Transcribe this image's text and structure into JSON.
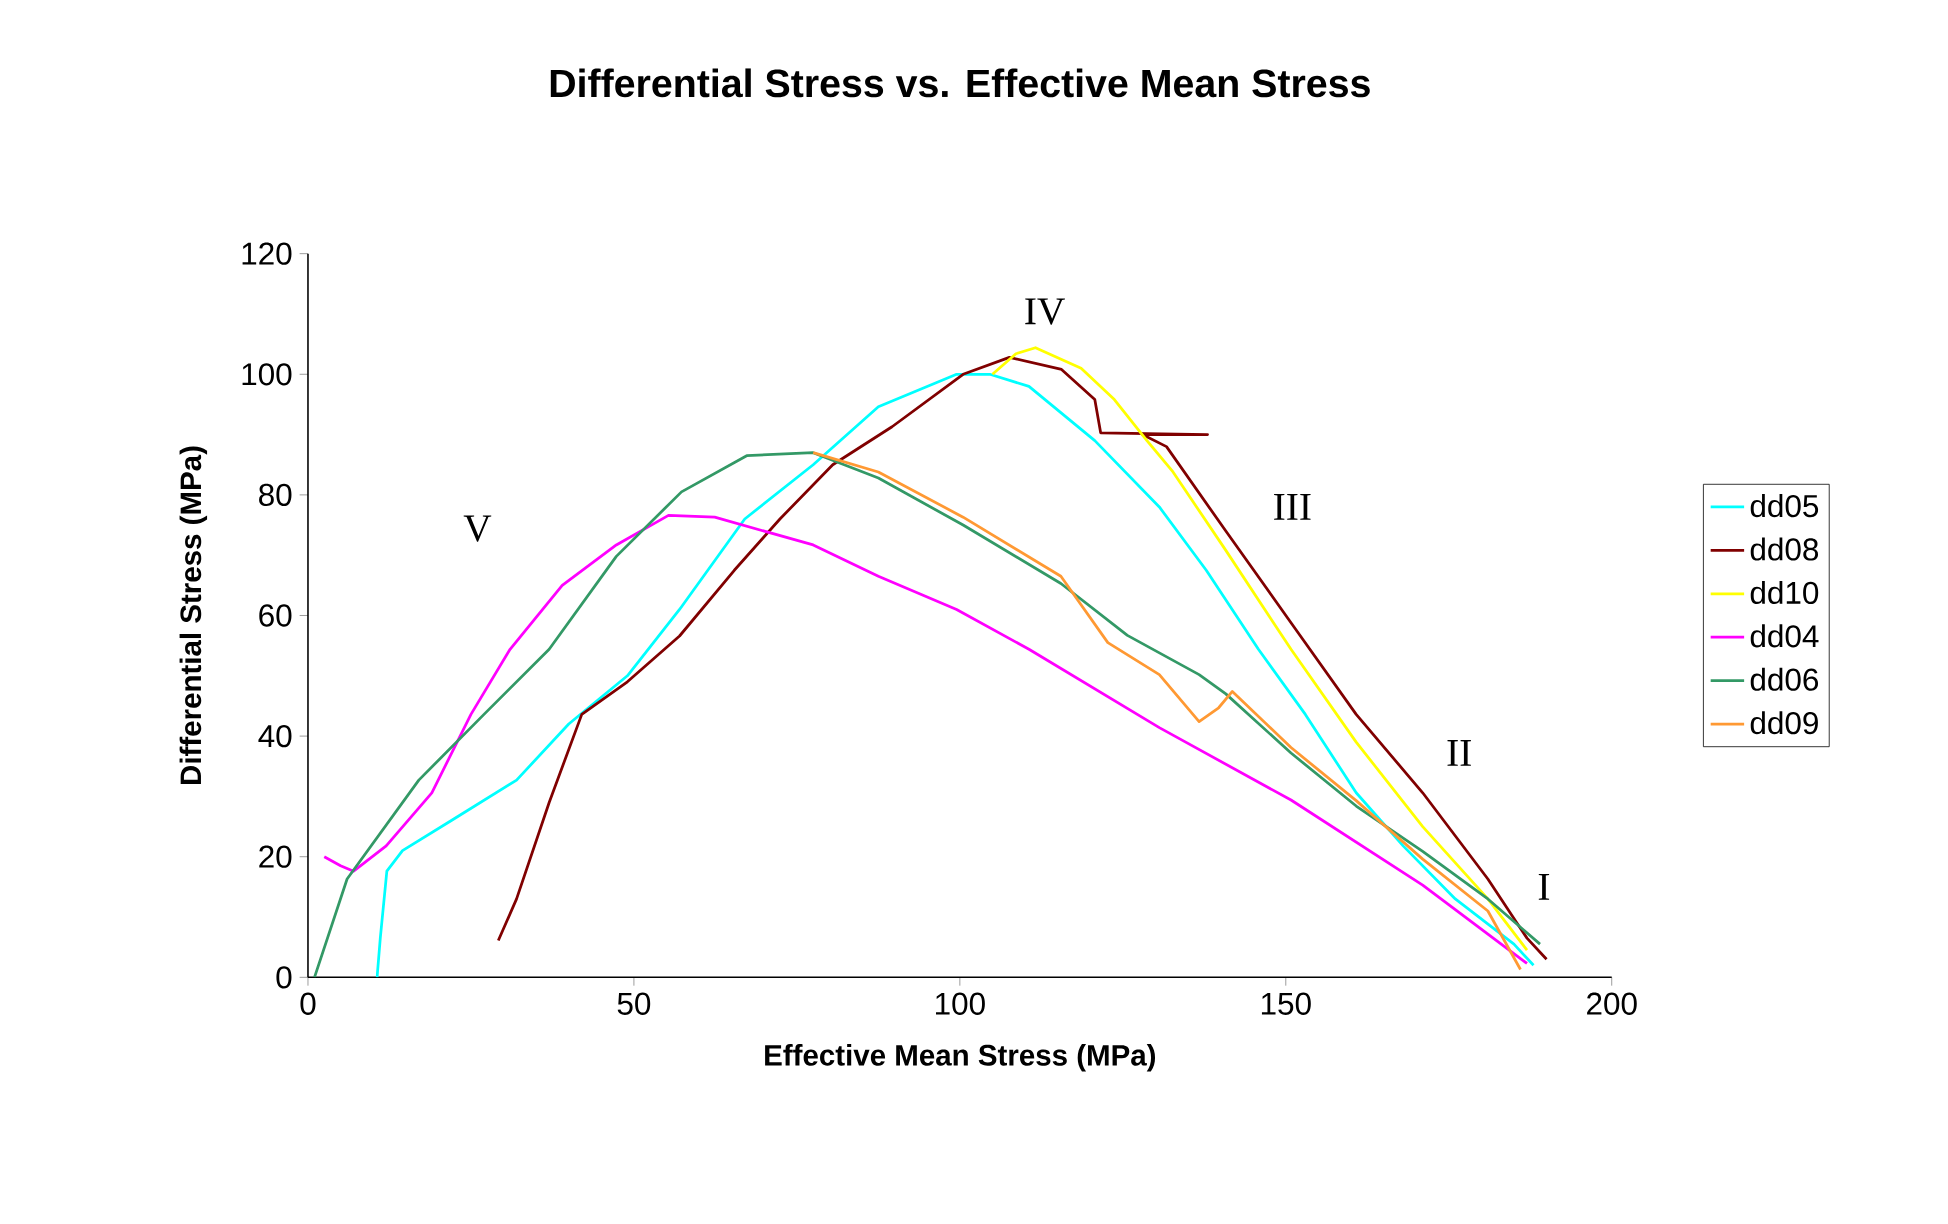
{
  "chart_data": {
    "type": "line",
    "title": "Differential Stress vs. Effective Mean Stress",
    "xlabel": "Effective Mean Stress (MPa)",
    "ylabel": "Differential Stress (MPa)",
    "xlim": [
      0,
      200
    ],
    "xticks": [
      0,
      50,
      100,
      150,
      200
    ],
    "ylim": [
      0,
      120
    ],
    "yticks": [
      0,
      20,
      40,
      60,
      80,
      100,
      120
    ],
    "grid": false,
    "legend": "right",
    "marker": "none",
    "line_style": "solid",
    "series": [
      {
        "name": "dd05",
        "color": "#00ffff",
        "x": [
          10.6,
          11.1,
          12.1,
          14.5,
          22,
          32,
          40,
          49,
          57,
          67,
          77.5,
          87.5,
          99.5,
          104.6,
          110.6,
          120.7,
          130.6,
          137.8,
          145.8,
          153,
          160.8,
          168,
          176,
          185,
          188
        ],
        "values": [
          0,
          6.6,
          17.6,
          21,
          26,
          32.7,
          42,
          50,
          61,
          76,
          85,
          94.6,
          100,
          100,
          98,
          89,
          78,
          67.5,
          54.4,
          43.6,
          30.6,
          21.8,
          13,
          5.5,
          2
        ]
      },
      {
        "name": "dd08",
        "color": "#800000",
        "x": [
          29.2,
          32,
          37,
          42,
          49,
          57,
          65.4,
          72.4,
          80.5,
          89.6,
          100.5,
          107.6,
          115.6,
          120.7,
          121.6,
          138,
          128,
          131.7,
          140.8,
          150.8,
          160.8,
          171,
          181,
          187,
          190
        ],
        "values": [
          6.1,
          13,
          29,
          43.6,
          49,
          56.6,
          67.5,
          76,
          85,
          91.3,
          100,
          102.8,
          100.8,
          95.8,
          90.3,
          90,
          90,
          88,
          74,
          58.8,
          43.6,
          30.6,
          16.3,
          6.5,
          3
        ]
      },
      {
        "name": "dd10",
        "color": "#ffff00",
        "x": [
          105,
          108.6,
          111.6,
          118.6,
          123.7,
          128.7,
          132.7,
          140.8,
          150.8,
          160.8,
          171,
          181,
          187
        ],
        "values": [
          100,
          103.4,
          104.4,
          101,
          95.8,
          89,
          83.8,
          70.8,
          54.4,
          39,
          25,
          13,
          4.5
        ]
      },
      {
        "name": "dd04",
        "color": "#ff00ff",
        "x": [
          2.5,
          5,
          7,
          12,
          19,
          25,
          31,
          39,
          47.3,
          55.3,
          62.4,
          77.5,
          87.5,
          99.5,
          110.6,
          130.6,
          150.8,
          171,
          187
        ],
        "values": [
          20,
          18.5,
          17.6,
          21.8,
          30.6,
          43.6,
          54.4,
          65,
          71.7,
          76.6,
          76.3,
          71.7,
          66.5,
          61,
          54.4,
          41.4,
          29.4,
          15.3,
          2.3
        ]
      },
      {
        "name": "dd06",
        "color": "#339966",
        "x": [
          1,
          6,
          17,
          27,
          37,
          47.3,
          57.3,
          67.3,
          77.5,
          87.5,
          100.5,
          115.5,
          125.7,
          136.7,
          140.8,
          150.8,
          160.8,
          171,
          181,
          189
        ],
        "values": [
          0,
          16.3,
          32.7,
          43.6,
          54.4,
          69.8,
          80.5,
          86.5,
          87,
          82.8,
          75,
          65.3,
          56.7,
          50.2,
          47,
          37.2,
          28.4,
          20.9,
          13,
          5.5
        ]
      },
      {
        "name": "dd09",
        "color": "#ff9933",
        "x": [
          77.5,
          87.5,
          100.5,
          115.5,
          122.7,
          130.6,
          136.7,
          139.7,
          141.8,
          150.8,
          160.8,
          171,
          181,
          186
        ],
        "values": [
          87,
          83.8,
          76.3,
          66.5,
          55.5,
          50.2,
          42.4,
          44.7,
          47.4,
          38.1,
          29.3,
          19.6,
          11,
          1.3
        ]
      }
    ],
    "annotations": [
      "IV",
      "III",
      "II",
      "I",
      "V"
    ]
  }
}
